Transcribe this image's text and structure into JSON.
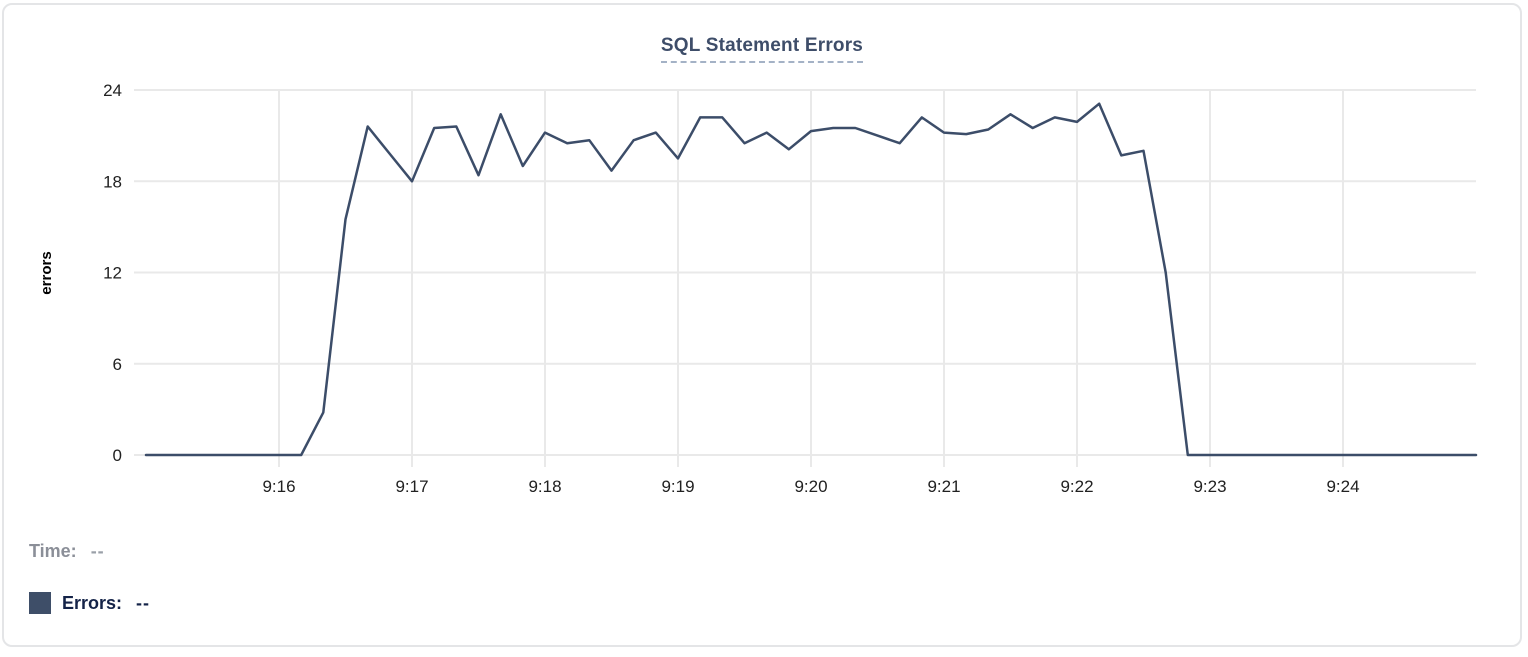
{
  "card": {
    "title": "SQL Statement Errors"
  },
  "legend": {
    "time_label": "Time:",
    "time_value": "--",
    "errors_label": "Errors:",
    "errors_value": "--"
  },
  "chart_data": {
    "type": "line",
    "title": "SQL Statement Errors",
    "xlabel": "",
    "ylabel": "errors",
    "ylim": [
      0,
      24
    ],
    "y_ticks": [
      0,
      6,
      12,
      18,
      24
    ],
    "x_tick_labels": [
      "9:16",
      "9:17",
      "9:18",
      "9:19",
      "9:20",
      "9:21",
      "9:22",
      "9:23",
      "9:24"
    ],
    "x_range": [
      "9:15:00",
      "9:25:00"
    ],
    "grid": true,
    "legend_position": "bottom-left",
    "colors": {
      "line": "#3c4d69",
      "grid": "#e9e9e9",
      "tick_text": "#212121",
      "axis_title_text": "#000000"
    },
    "series": [
      {
        "name": "Errors",
        "color": "#3e4e68",
        "times": [
          "9:15:00",
          "9:15:10",
          "9:15:20",
          "9:15:30",
          "9:15:40",
          "9:15:50",
          "9:16:00",
          "9:16:10",
          "9:16:20",
          "9:16:30",
          "9:16:40",
          "9:16:50",
          "9:17:00",
          "9:17:10",
          "9:17:20",
          "9:17:30",
          "9:17:40",
          "9:17:50",
          "9:18:00",
          "9:18:10",
          "9:18:20",
          "9:18:30",
          "9:18:40",
          "9:18:50",
          "9:19:00",
          "9:19:10",
          "9:19:20",
          "9:19:30",
          "9:19:40",
          "9:19:50",
          "9:20:00",
          "9:20:10",
          "9:20:20",
          "9:20:30",
          "9:20:40",
          "9:20:50",
          "9:21:00",
          "9:21:10",
          "9:21:20",
          "9:21:30",
          "9:21:40",
          "9:21:50",
          "9:22:00",
          "9:22:10",
          "9:22:20",
          "9:22:30",
          "9:22:40",
          "9:22:50",
          "9:23:00",
          "9:23:10",
          "9:23:20",
          "9:23:30",
          "9:23:40",
          "9:23:50",
          "9:24:00",
          "9:24:10",
          "9:24:20",
          "9:24:30",
          "9:24:40",
          "9:24:50",
          "9:25:00"
        ],
        "values": [
          0,
          0,
          0,
          0,
          0,
          0,
          0,
          0,
          2.8,
          15.5,
          21.6,
          19.8,
          18.0,
          21.5,
          21.6,
          18.4,
          22.4,
          19.0,
          21.2,
          20.5,
          20.7,
          18.7,
          20.7,
          21.2,
          19.5,
          22.2,
          22.2,
          20.5,
          21.2,
          20.1,
          21.3,
          21.5,
          21.5,
          21.0,
          20.5,
          22.2,
          21.2,
          21.1,
          21.4,
          22.4,
          21.5,
          22.2,
          21.9,
          23.1,
          19.7,
          20.0,
          12.0,
          0,
          0,
          0,
          0,
          0,
          0,
          0,
          0,
          0,
          0,
          0,
          0,
          0,
          0
        ]
      }
    ]
  }
}
